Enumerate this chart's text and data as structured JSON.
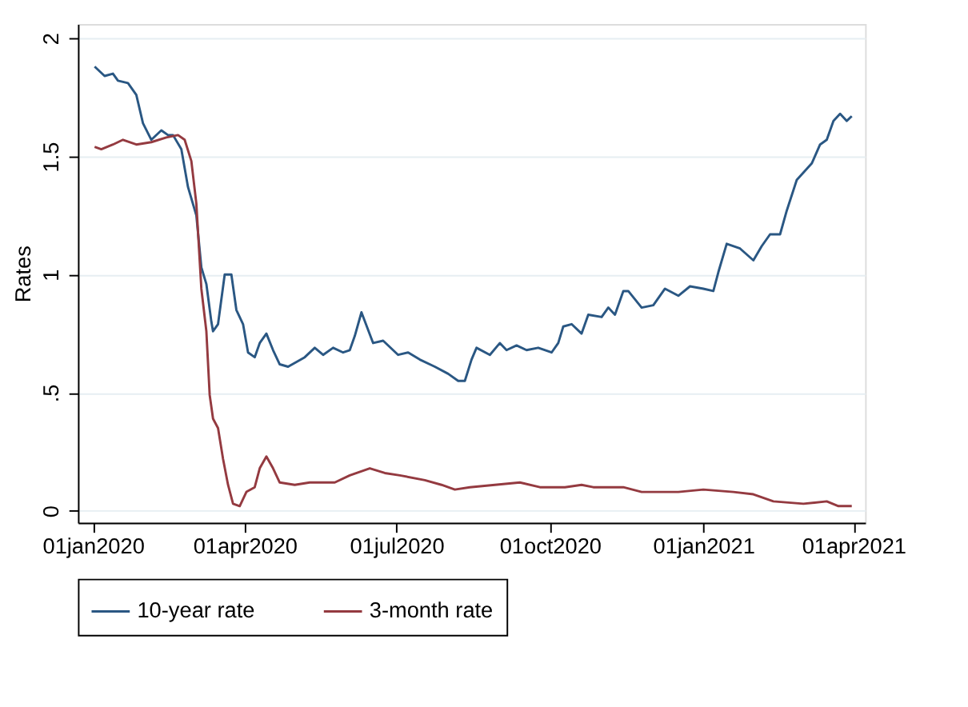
{
  "chart_data": {
    "type": "line",
    "ylabel": "Rates",
    "legend": "bottom",
    "grid": "y",
    "marker": "none",
    "line_style": "solid",
    "xlim": [
      "2019-12-23",
      "2021-04-08"
    ],
    "ylim": [
      -0.05,
      2.06
    ],
    "xticks": [
      {
        "value": "2020-01-01",
        "label": "01jan2020"
      },
      {
        "value": "2020-04-01",
        "label": "01apr2020"
      },
      {
        "value": "2020-07-01",
        "label": "01jul2020"
      },
      {
        "value": "2020-10-01",
        "label": "01oct2020"
      },
      {
        "value": "2021-01-01",
        "label": "01jan2021"
      },
      {
        "value": "2021-04-01",
        "label": "01apr2021"
      }
    ],
    "yticks": [
      0,
      {
        "value": 0.5,
        "label": ".5"
      },
      1,
      1.5,
      2
    ],
    "series": [
      {
        "name": "10-year rate",
        "color": "#2a5783",
        "x": [
          "2020-01-02",
          "2020-01-08",
          "2020-01-13",
          "2020-01-16",
          "2020-01-22",
          "2020-01-27",
          "2020-01-31",
          "2020-02-05",
          "2020-02-11",
          "2020-02-15",
          "2020-02-18",
          "2020-02-23",
          "2020-02-27",
          "2020-03-03",
          "2020-03-06",
          "2020-03-09",
          "2020-03-12",
          "2020-03-13",
          "2020-03-16",
          "2020-03-20",
          "2020-03-24",
          "2020-03-27",
          "2020-03-31",
          "2020-04-03",
          "2020-04-07",
          "2020-04-10",
          "2020-04-14",
          "2020-04-18",
          "2020-04-22",
          "2020-04-27",
          "2020-05-07",
          "2020-05-13",
          "2020-05-18",
          "2020-05-24",
          "2020-05-30",
          "2020-06-03",
          "2020-06-06",
          "2020-06-10",
          "2020-06-17",
          "2020-06-23",
          "2020-07-02",
          "2020-07-08",
          "2020-07-15",
          "2020-07-24",
          "2020-08-01",
          "2020-08-07",
          "2020-08-11",
          "2020-08-15",
          "2020-08-18",
          "2020-08-26",
          "2020-09-01",
          "2020-09-05",
          "2020-09-11",
          "2020-09-17",
          "2020-09-24",
          "2020-10-02",
          "2020-10-06",
          "2020-10-09",
          "2020-10-14",
          "2020-10-20",
          "2020-10-24",
          "2020-11-01",
          "2020-11-05",
          "2020-11-09",
          "2020-11-14",
          "2020-11-17",
          "2020-11-25",
          "2020-12-02",
          "2020-12-09",
          "2020-12-17",
          "2020-12-24",
          "2021-01-01",
          "2021-01-07",
          "2021-01-10",
          "2021-01-15",
          "2021-01-23",
          "2021-01-31",
          "2021-02-05",
          "2021-02-10",
          "2021-02-16",
          "2021-02-20",
          "2021-02-26",
          "2021-03-07",
          "2021-03-12",
          "2021-03-16",
          "2021-03-20",
          "2021-03-24",
          "2021-03-28",
          "2021-03-31"
        ],
        "values": [
          1.88,
          1.84,
          1.85,
          1.82,
          1.81,
          1.76,
          1.64,
          1.57,
          1.61,
          1.59,
          1.59,
          1.53,
          1.37,
          1.25,
          1.03,
          0.96,
          0.8,
          0.76,
          0.79,
          1.0,
          1.0,
          0.85,
          0.79,
          0.67,
          0.65,
          0.71,
          0.75,
          0.68,
          0.62,
          0.61,
          0.65,
          0.69,
          0.66,
          0.69,
          0.67,
          0.68,
          0.74,
          0.84,
          0.71,
          0.72,
          0.66,
          0.67,
          0.64,
          0.61,
          0.58,
          0.55,
          0.55,
          0.64,
          0.69,
          0.66,
          0.71,
          0.68,
          0.7,
          0.68,
          0.69,
          0.67,
          0.71,
          0.78,
          0.79,
          0.75,
          0.83,
          0.82,
          0.86,
          0.83,
          0.93,
          0.93,
          0.86,
          0.87,
          0.94,
          0.91,
          0.95,
          0.94,
          0.93,
          1.01,
          1.13,
          1.11,
          1.06,
          1.12,
          1.17,
          1.17,
          1.27,
          1.4,
          1.47,
          1.55,
          1.57,
          1.65,
          1.68,
          1.65,
          1.67
        ]
      },
      {
        "name": "3-month rate",
        "color": "#943a40",
        "x": [
          "2020-01-02",
          "2020-01-06",
          "2020-01-13",
          "2020-01-19",
          "2020-01-27",
          "2020-02-05",
          "2020-02-14",
          "2020-02-21",
          "2020-02-25",
          "2020-02-29",
          "2020-03-03",
          "2020-03-06",
          "2020-03-09",
          "2020-03-11",
          "2020-03-13",
          "2020-03-16",
          "2020-03-19",
          "2020-03-22",
          "2020-03-25",
          "2020-03-29",
          "2020-04-02",
          "2020-04-07",
          "2020-04-10",
          "2020-04-14",
          "2020-04-18",
          "2020-04-22",
          "2020-05-01",
          "2020-05-10",
          "2020-05-25",
          "2020-06-03",
          "2020-06-15",
          "2020-06-24",
          "2020-07-03",
          "2020-07-18",
          "2020-07-28",
          "2020-08-05",
          "2020-08-14",
          "2020-08-29",
          "2020-09-13",
          "2020-09-25",
          "2020-10-10",
          "2020-10-20",
          "2020-10-27",
          "2020-11-14",
          "2020-11-25",
          "2020-12-17",
          "2021-01-01",
          "2021-01-19",
          "2021-01-31",
          "2021-02-12",
          "2021-03-02",
          "2021-03-16",
          "2021-03-23",
          "2021-03-31"
        ],
        "values": [
          1.54,
          1.53,
          1.55,
          1.57,
          1.55,
          1.56,
          1.58,
          1.59,
          1.57,
          1.48,
          1.3,
          0.94,
          0.76,
          0.49,
          0.39,
          0.35,
          0.22,
          0.11,
          0.03,
          0.02,
          0.08,
          0.1,
          0.18,
          0.23,
          0.18,
          0.12,
          0.11,
          0.12,
          0.12,
          0.15,
          0.18,
          0.16,
          0.15,
          0.13,
          0.11,
          0.09,
          0.1,
          0.11,
          0.12,
          0.1,
          0.1,
          0.11,
          0.1,
          0.1,
          0.08,
          0.08,
          0.09,
          0.08,
          0.07,
          0.04,
          0.03,
          0.04,
          0.02,
          0.02
        ]
      }
    ]
  }
}
